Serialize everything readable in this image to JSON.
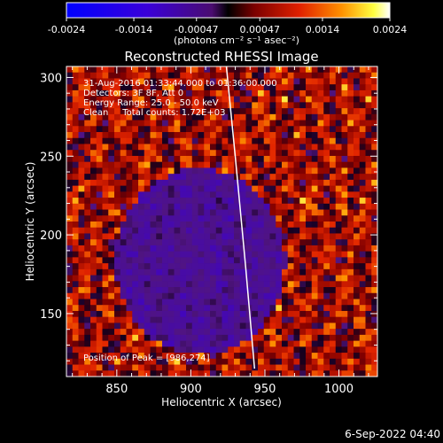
{
  "chart_data": {
    "type": "heatmap",
    "title": "Reconstructed RHESSI Image",
    "xlabel": "Heliocentric X (arcsec)",
    "ylabel": "Heliocentric Y (arcsec)",
    "xlim": [
      816,
      1026
    ],
    "ylim": [
      110,
      307
    ],
    "x_ticks": [
      850,
      900,
      950,
      1000
    ],
    "y_ticks": [
      150,
      200,
      250,
      300
    ],
    "colorbar": {
      "min": -0.0024,
      "max": 0.0024,
      "ticks": [
        "-0.0024",
        "-0.0014",
        "-0.00047",
        "0.00047",
        "0.0014",
        "0.0024"
      ],
      "tick_values": [
        -0.0024,
        -0.0014,
        -0.00047,
        0.00047,
        0.0014,
        0.0024
      ],
      "unit_label": "(photons cm⁻² s⁻¹ asec⁻²)"
    },
    "info_lines": [
      "31-Aug-2016 01:33:44.000 to 01:36:00.000",
      "Detectors: 3F 8F, Att 0",
      "Energy Range: 25.0 - 50.0 keV",
      "Clean     Total counts: 1.72E+03"
    ],
    "peak_label": "Position of Peak = [986,274]",
    "limb_curve": {
      "x": [
        924,
        930,
        937,
        943
      ],
      "y": [
        307,
        250,
        180,
        115
      ]
    },
    "grid": false,
    "legend": "colorbar-top"
  },
  "footer_date": "6-Sep-2022 04:40",
  "colors": {
    "background": "#000000",
    "text": "#ffffff"
  }
}
